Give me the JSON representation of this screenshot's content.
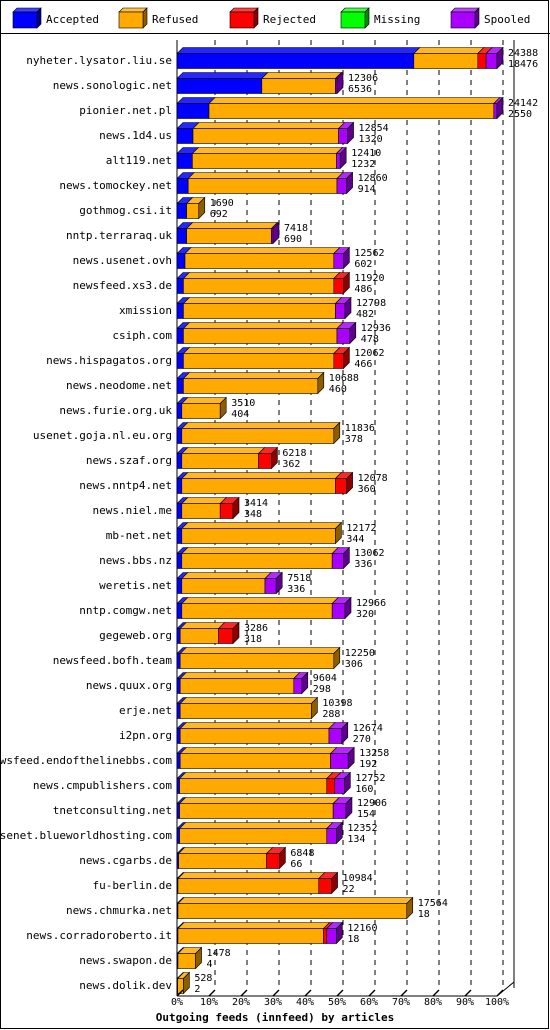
{
  "chart_data": {
    "type": "bar",
    "stacked": true,
    "orientation": "horizontal",
    "title": "",
    "xlabel": "Outgoing feeds (innfeed) by articles",
    "ylabel": "",
    "xlim": [
      0,
      100
    ],
    "x_unit": "%",
    "x_ticks": [
      "0%",
      "10%",
      "20%",
      "30%",
      "40%",
      "50%",
      "60%",
      "70%",
      "80%",
      "90%",
      "100%"
    ],
    "grid": true,
    "legend_position": "top",
    "legend": [
      {
        "name": "Accepted",
        "color": "#0000ff"
      },
      {
        "name": "Refused",
        "color": "#ffaa00"
      },
      {
        "name": "Rejected",
        "color": "#ff0000"
      },
      {
        "name": "Missing",
        "color": "#00ff00"
      },
      {
        "name": "Spooled",
        "color": "#aa00ff"
      }
    ],
    "rows": [
      {
        "name": "nyheter.lysator.liu.se",
        "total": "24388",
        "refused": "18476",
        "segments": [
          74.0,
          20.0,
          2.6,
          0,
          3.4
        ]
      },
      {
        "name": "news.sonologic.net",
        "total": "12306",
        "refused": "6536",
        "segments": [
          26.5,
          23.0,
          0,
          0,
          0.5
        ]
      },
      {
        "name": "pionier.net.pl",
        "total": "24142",
        "refused": "2550",
        "segments": [
          10.0,
          89.0,
          0,
          0,
          1.0
        ]
      },
      {
        "name": "news.1d4.us",
        "total": "12854",
        "refused": "1320",
        "segments": [
          5.0,
          45.5,
          0,
          0,
          2.8
        ]
      },
      {
        "name": "alt119.net",
        "total": "12410",
        "refused": "1232",
        "segments": [
          4.8,
          45.0,
          0,
          0,
          1.2
        ]
      },
      {
        "name": "news.tomockey.net",
        "total": "12860",
        "refused": "914",
        "segments": [
          3.5,
          46.5,
          0,
          0,
          3.0
        ]
      },
      {
        "name": "gothmog.csi.it",
        "total": "1690",
        "refused": "692",
        "segments": [
          3.0,
          3.8,
          0,
          0,
          0
        ]
      },
      {
        "name": "nntp.terraraq.uk",
        "total": "7418",
        "refused": "690",
        "segments": [
          3.0,
          26.5,
          0,
          0,
          0.5
        ]
      },
      {
        "name": "news.usenet.ovh",
        "total": "12562",
        "refused": "602",
        "segments": [
          2.5,
          46.5,
          0,
          0,
          3.0
        ]
      },
      {
        "name": "newsfeed.xs3.de",
        "total": "11920",
        "refused": "486",
        "segments": [
          2.0,
          47.0,
          3.0,
          0,
          0
        ]
      },
      {
        "name": "xmission",
        "total": "12798",
        "refused": "482",
        "segments": [
          2.0,
          47.5,
          0,
          0,
          3.0
        ]
      },
      {
        "name": "csiph.com",
        "total": "12936",
        "refused": "478",
        "segments": [
          2.0,
          48.0,
          0,
          0,
          4.0
        ]
      },
      {
        "name": "news.hispagatos.org",
        "total": "12062",
        "refused": "466",
        "segments": [
          2.0,
          47.0,
          3.0,
          0,
          0
        ]
      },
      {
        "name": "news.neodome.net",
        "total": "10688",
        "refused": "460",
        "segments": [
          2.0,
          42.0,
          0,
          0,
          0
        ]
      },
      {
        "name": "news.furie.org.uk",
        "total": "3510",
        "refused": "404",
        "segments": [
          1.5,
          12.0,
          0,
          0,
          0
        ]
      },
      {
        "name": "usenet.goja.nl.eu.org",
        "total": "11836",
        "refused": "378",
        "segments": [
          1.5,
          47.5,
          0,
          0,
          0
        ]
      },
      {
        "name": "news.szaf.org",
        "total": "6218",
        "refused": "362",
        "segments": [
          1.5,
          24.0,
          4.0,
          0,
          0
        ]
      },
      {
        "name": "news.nntp4.net",
        "total": "12078",
        "refused": "360",
        "segments": [
          1.5,
          48.0,
          3.5,
          0,
          0
        ]
      },
      {
        "name": "news.niel.me",
        "total": "3414",
        "refused": "348",
        "segments": [
          1.5,
          12.0,
          4.0,
          0,
          0
        ]
      },
      {
        "name": "mb-net.net",
        "total": "12172",
        "refused": "344",
        "segments": [
          1.5,
          48.0,
          0,
          0,
          0
        ]
      },
      {
        "name": "news.bbs.nz",
        "total": "13062",
        "refused": "336",
        "segments": [
          1.5,
          47.0,
          0,
          0,
          3.5
        ]
      },
      {
        "name": "weretis.net",
        "total": "7518",
        "refused": "336",
        "segments": [
          1.5,
          26.0,
          0,
          0,
          3.5
        ]
      },
      {
        "name": "nntp.comgw.net",
        "total": "12966",
        "refused": "320",
        "segments": [
          1.5,
          47.0,
          0,
          0,
          4.0
        ]
      },
      {
        "name": "gegeweb.org",
        "total": "3286",
        "refused": "318",
        "segments": [
          1.0,
          12.0,
          4.5,
          0,
          0
        ]
      },
      {
        "name": "newsfeed.bofh.team",
        "total": "12250",
        "refused": "306",
        "segments": [
          1.0,
          48.0,
          0,
          0,
          0
        ]
      },
      {
        "name": "news.quux.org",
        "total": "9604",
        "refused": "298",
        "segments": [
          1.0,
          35.5,
          0,
          0,
          2.5
        ]
      },
      {
        "name": "erje.net",
        "total": "10398",
        "refused": "288",
        "segments": [
          1.0,
          41.0,
          0,
          0,
          0
        ]
      },
      {
        "name": "i2pn.org",
        "total": "12674",
        "refused": "270",
        "segments": [
          1.0,
          46.5,
          0,
          0,
          4.0
        ]
      },
      {
        "name": "newsfeed.endofthelinebbs.com",
        "total": "13258",
        "refused": "192",
        "segments": [
          1.0,
          47.0,
          0,
          0,
          5.5
        ]
      },
      {
        "name": "news.cmpublishers.com",
        "total": "12752",
        "refused": "160",
        "segments": [
          0.8,
          46.0,
          2.5,
          0,
          3.0
        ]
      },
      {
        "name": "tnetconsulting.net",
        "total": "12906",
        "refused": "154",
        "segments": [
          0.8,
          48.0,
          0,
          0,
          4.0
        ]
      },
      {
        "name": "usenet.blueworldhosting.com",
        "total": "12352",
        "refused": "134",
        "segments": [
          0.8,
          46.0,
          0,
          0,
          3.0
        ]
      },
      {
        "name": "news.cgarbs.de",
        "total": "6848",
        "refused": "66",
        "segments": [
          0.5,
          27.5,
          4.0,
          0,
          0
        ]
      },
      {
        "name": "fu-berlin.de",
        "total": "10984",
        "refused": "22",
        "segments": [
          0.3,
          44.0,
          4.0,
          0,
          0
        ]
      },
      {
        "name": "news.chmurka.net",
        "total": "17564",
        "refused": "18",
        "segments": [
          0.3,
          71.5,
          0,
          0,
          0
        ]
      },
      {
        "name": "news.corradoroberto.it",
        "total": "12160",
        "refused": "18",
        "segments": [
          0.3,
          45.5,
          1.0,
          0,
          3.0
        ]
      },
      {
        "name": "news.swapon.de",
        "total": "1478",
        "refused": "4",
        "segments": [
          0.3,
          5.5,
          0,
          0,
          0
        ]
      },
      {
        "name": "news.dolik.dev",
        "total": "528",
        "refused": "2",
        "segments": [
          0.2,
          1.8,
          0,
          0,
          0
        ]
      }
    ]
  }
}
